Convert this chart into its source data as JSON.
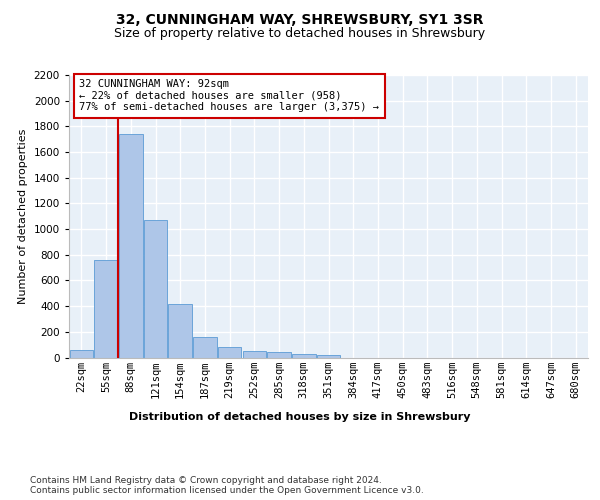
{
  "title_line1": "32, CUNNINGHAM WAY, SHREWSBURY, SY1 3SR",
  "title_line2": "Size of property relative to detached houses in Shrewsbury",
  "xlabel": "Distribution of detached houses by size in Shrewsbury",
  "ylabel": "Number of detached properties",
  "footnote": "Contains HM Land Registry data © Crown copyright and database right 2024.\nContains public sector information licensed under the Open Government Licence v3.0.",
  "bar_labels": [
    "22sqm",
    "55sqm",
    "88sqm",
    "121sqm",
    "154sqm",
    "187sqm",
    "219sqm",
    "252sqm",
    "285sqm",
    "318sqm",
    "351sqm",
    "384sqm",
    "417sqm",
    "450sqm",
    "483sqm",
    "516sqm",
    "548sqm",
    "581sqm",
    "614sqm",
    "647sqm",
    "680sqm"
  ],
  "bar_values": [
    55,
    760,
    1740,
    1070,
    415,
    160,
    85,
    48,
    40,
    30,
    20,
    0,
    0,
    0,
    0,
    0,
    0,
    0,
    0,
    0,
    0
  ],
  "bar_color": "#aec6e8",
  "bar_edge_color": "#5b9bd5",
  "background_color": "#e8f0f8",
  "grid_color": "#ffffff",
  "annotation_text": "32 CUNNINGHAM WAY: 92sqm\n← 22% of detached houses are smaller (958)\n77% of semi-detached houses are larger (3,375) →",
  "vline_color": "#cc0000",
  "annotation_box_color": "#ffffff",
  "annotation_box_edge": "#cc0000",
  "ylim": [
    0,
    2200
  ],
  "yticks": [
    0,
    200,
    400,
    600,
    800,
    1000,
    1200,
    1400,
    1600,
    1800,
    2000,
    2200
  ],
  "title_fontsize": 10,
  "subtitle_fontsize": 9,
  "axis_label_fontsize": 8,
  "tick_fontsize": 7.5,
  "annotation_fontsize": 7.5,
  "footnote_fontsize": 6.5
}
